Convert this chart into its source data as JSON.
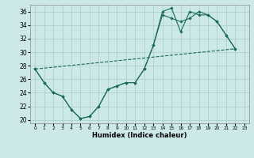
{
  "xlabel": "Humidex (Indice chaleur)",
  "bg_color": "#cce8e8",
  "grid_color": "#aacccc",
  "line_color": "#1a6b5a",
  "xlim": [
    -0.5,
    23.5
  ],
  "ylim": [
    19.5,
    37
  ],
  "yticks": [
    20,
    22,
    24,
    26,
    28,
    30,
    32,
    34,
    36
  ],
  "xticks": [
    0,
    1,
    2,
    3,
    4,
    5,
    6,
    7,
    8,
    9,
    10,
    11,
    12,
    13,
    14,
    15,
    16,
    17,
    18,
    19,
    20,
    21,
    22,
    23
  ],
  "curve1_x": [
    0,
    1,
    2,
    3,
    4,
    5,
    6,
    7,
    8,
    9,
    10,
    11,
    12,
    13,
    14,
    15,
    16,
    17,
    18,
    19,
    20,
    21,
    22
  ],
  "curve1_y": [
    27.5,
    25.5,
    24.0,
    23.5,
    21.5,
    20.2,
    20.5,
    22.0,
    24.5,
    25.0,
    25.5,
    25.5,
    27.5,
    31.0,
    36.0,
    36.5,
    33.0,
    36.0,
    35.5,
    35.5,
    34.5,
    32.5,
    30.5
  ],
  "curve2_x": [
    0,
    1,
    2,
    3,
    4,
    5,
    6,
    7,
    8,
    9,
    10,
    11,
    12,
    13,
    14,
    15,
    16,
    17,
    18,
    19,
    20,
    21,
    22
  ],
  "curve2_y": [
    27.5,
    25.5,
    24.0,
    23.5,
    21.5,
    20.2,
    20.5,
    22.0,
    24.5,
    25.0,
    25.5,
    25.5,
    27.5,
    31.0,
    35.5,
    35.0,
    34.5,
    35.0,
    36.0,
    35.5,
    34.5,
    32.5,
    30.5
  ],
  "curve3_x": [
    0,
    22
  ],
  "curve3_y": [
    27.5,
    30.5
  ]
}
